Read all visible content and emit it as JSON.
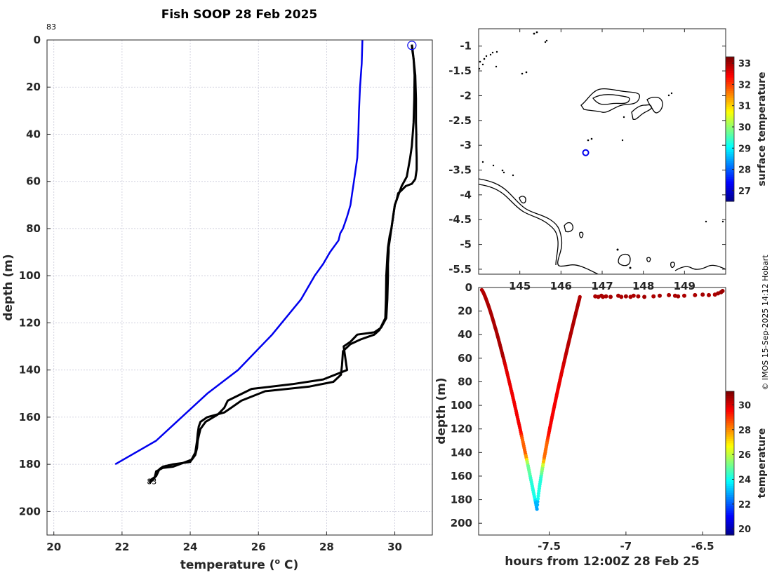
{
  "credit": "© IMOS 15-Sep-2025 14:12 Hobart",
  "colormap": [
    "#00008f",
    "#0000ff",
    "#0080ff",
    "#00ffff",
    "#80ff80",
    "#ffff00",
    "#ff8000",
    "#ff0000",
    "#800000"
  ],
  "chart_data": [
    {
      "id": "profile",
      "type": "line",
      "title": "Fish SOOP 28 Feb 2025",
      "xlabel": "temperature (° C)",
      "xlabel_main": "temperature (",
      "xlabel_sup": "o",
      "xlabel_end": " C)",
      "ylabel": "depth (m)",
      "xlim": [
        19.8,
        31.1
      ],
      "ylim": [
        0,
        210
      ],
      "y_reversed": true,
      "xticks": [
        20,
        22,
        24,
        26,
        28,
        30
      ],
      "yticks": [
        0,
        20,
        40,
        60,
        80,
        100,
        120,
        140,
        160,
        180,
        200
      ],
      "annotations": [
        {
          "text": "83",
          "x": 19.8,
          "y": -4.5
        },
        {
          "text": "83",
          "x": 22.75,
          "y": 188.5
        }
      ],
      "series": [
        {
          "name": "climatology",
          "color": "#0000ee",
          "x": [
            29.05,
            29.03,
            28.98,
            28.95,
            28.93,
            28.9,
            28.85,
            28.8,
            28.75,
            28.7,
            28.6,
            28.48,
            28.4,
            28.35,
            28.1,
            27.9,
            27.65,
            27.25,
            26.4,
            25.4,
            24.5,
            23.0,
            21.8
          ],
          "y": [
            0,
            10,
            20,
            30,
            40,
            50,
            55,
            60,
            65,
            70,
            75,
            80,
            82,
            85,
            90,
            95,
            100,
            110,
            125,
            140,
            150,
            170,
            180
          ]
        },
        {
          "name": "profile-down",
          "color": "#000000",
          "x": [
            30.5,
            30.52,
            30.55,
            30.6,
            30.62,
            30.62,
            30.63,
            30.63,
            30.64,
            30.64,
            30.6,
            30.5,
            30.32,
            30.18,
            30.1,
            30.05,
            30.0,
            29.95,
            29.9,
            29.85,
            29.82,
            29.82,
            29.8,
            29.8,
            29.78,
            29.75,
            29.6,
            29.4,
            28.9,
            28.7,
            28.5,
            28.55,
            28.6,
            27.9,
            27.0,
            25.8,
            25.1,
            25.0,
            24.8,
            24.45,
            24.3,
            24.25,
            24.22,
            24.2,
            24.15,
            24.05,
            23.5,
            23.2,
            23.0,
            22.95,
            22.8
          ],
          "y": [
            2,
            5,
            8,
            15,
            25,
            35,
            40,
            45,
            50,
            55,
            59,
            61,
            62,
            64,
            65,
            68,
            70,
            75,
            80,
            85,
            88,
            90,
            95,
            100,
            110,
            118,
            122,
            124,
            125,
            128,
            130,
            135,
            140,
            144,
            146,
            148,
            153,
            156,
            159,
            162,
            165,
            168,
            170,
            173,
            176,
            178,
            181,
            181.5,
            183,
            186,
            188
          ]
        },
        {
          "name": "profile-up",
          "color": "#000000",
          "x": [
            22.8,
            23.0,
            23.1,
            23.2,
            23.5,
            24.0,
            24.15,
            24.2,
            24.22,
            24.25,
            24.3,
            24.5,
            25.0,
            25.2,
            25.5,
            26.2,
            27.5,
            28.2,
            28.42,
            28.45,
            28.48,
            28.7,
            29.0,
            29.2,
            29.4,
            29.55,
            29.72,
            29.74,
            29.75,
            29.78,
            29.8,
            29.85,
            29.9,
            29.95,
            30.0,
            30.1,
            30.2,
            30.35,
            30.45,
            30.5,
            30.55,
            30.57,
            30.58,
            30.55,
            30.52,
            30.5
          ],
          "y": [
            187,
            185,
            182,
            181,
            180,
            179,
            175,
            170,
            167,
            164,
            162,
            160,
            158,
            156,
            153,
            149,
            147,
            145,
            142,
            138,
            132,
            129,
            127,
            126,
            125,
            123,
            118,
            110,
            100,
            92,
            88,
            83,
            80,
            75,
            70,
            66,
            62,
            58,
            50,
            45,
            35,
            25,
            15,
            8,
            4,
            2
          ]
        }
      ],
      "markers": [
        {
          "name": "surface-marker",
          "x": 30.5,
          "y": 2.3,
          "color": "#0000ee"
        }
      ]
    },
    {
      "id": "map",
      "type": "scatter",
      "xlim": [
        144.0,
        150.0
      ],
      "ylim": [
        -5.6,
        -0.65
      ],
      "xticks": [
        145,
        146,
        147,
        148,
        149
      ],
      "xticklabels": [
        "145",
        "146",
        "147",
        "148",
        "149"
      ],
      "yticks": [
        -1,
        -1.5,
        -2,
        -2.5,
        -3,
        -3.5,
        -4,
        -4.5,
        -5,
        -5.5
      ],
      "location": {
        "lon": 146.6,
        "lat": -3.15
      },
      "colorbar": {
        "label": "surface temperature",
        "min": 26.5,
        "max": 33.3,
        "ticks": [
          27,
          28,
          29,
          30,
          31,
          32,
          33
        ]
      }
    },
    {
      "id": "section",
      "type": "scatter",
      "xlabel": "hours from 12:00Z 28 Feb 25",
      "ylabel": "depth (m)",
      "xlim": [
        -7.96,
        -6.35
      ],
      "ylim": [
        0,
        210
      ],
      "y_reversed": true,
      "xticks": [
        -7.5,
        -7,
        -6.5
      ],
      "yticks": [
        0,
        20,
        40,
        60,
        80,
        100,
        120,
        140,
        160,
        180,
        200
      ],
      "colorbar": {
        "label": "temperature",
        "min": 19.5,
        "max": 31.1,
        "ticks": [
          20,
          22,
          24,
          26,
          28,
          30
        ]
      },
      "surface_points": {
        "hours": [
          -7.2,
          -7.18,
          -7.16,
          -7.15,
          -7.13,
          -7.1,
          -7.05,
          -7.03,
          -7.0,
          -6.97,
          -6.95,
          -6.92,
          -6.88,
          -6.82,
          -6.78,
          -6.72,
          -6.68,
          -6.66,
          -6.62,
          -6.55,
          -6.5,
          -6.46,
          -6.42,
          -6.4,
          -6.38,
          -6.37
        ],
        "depth": [
          7.5,
          8,
          7,
          8,
          7.5,
          8,
          7,
          8,
          7.5,
          8,
          7,
          7.5,
          8,
          7.5,
          7,
          6.5,
          7,
          7.5,
          7,
          6.5,
          6,
          6.5,
          6,
          5,
          4,
          3
        ],
        "temp": [
          30.6,
          30.6,
          30.7,
          30.6,
          30.6,
          30.7,
          30.6,
          30.6,
          30.7,
          30.6,
          30.6,
          30.6,
          30.7,
          30.6,
          30.7,
          30.6,
          30.6,
          30.7,
          30.6,
          30.6,
          30.7,
          30.6,
          30.6,
          30.7,
          30.8,
          30.8
        ]
      }
    }
  ]
}
